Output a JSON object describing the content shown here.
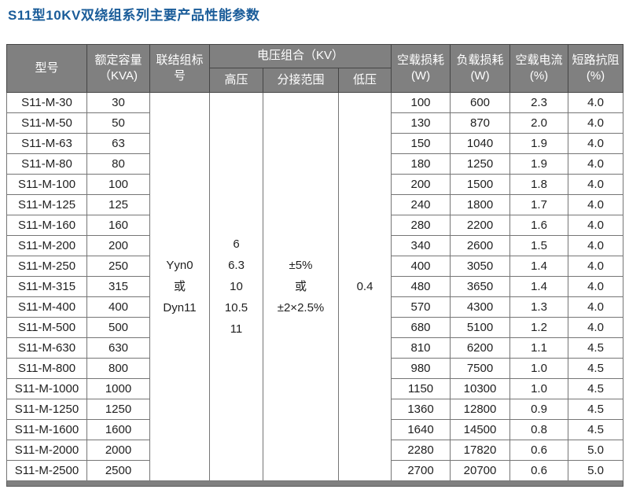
{
  "title": "S11型10KV双绕组系列主要产品性能参数",
  "colors": {
    "title_text": "#1a5c99",
    "header_bg": "#808080",
    "header_text": "#ffffff",
    "body_text": "#1f1f1f",
    "grid_border": "#757575",
    "footer_bar_bg": "#808080"
  },
  "table": {
    "headers": {
      "model": "型号",
      "capacity": [
        "额定容量",
        "（KVA)"
      ],
      "connection": [
        "联结组标",
        "号"
      ],
      "voltage_group": "电压组合（KV）",
      "high_voltage": "高压",
      "tap_range": "分接范围",
      "low_voltage": "低压",
      "no_load_loss": [
        "空载损耗",
        "(W)"
      ],
      "load_loss": [
        "负载损耗",
        "(W)"
      ],
      "no_load_current": [
        "空载电流",
        "(%)"
      ],
      "impedance": [
        "短路抗阻",
        "(%)"
      ]
    },
    "merged": {
      "connection_lines": [
        "Yyn0",
        "或",
        "Dyn11"
      ],
      "high_voltage_lines": [
        "6",
        "6.3",
        "10",
        "10.5",
        "11"
      ],
      "tap_range_lines": [
        "±5%",
        "或",
        "±2×2.5%"
      ],
      "low_voltage_value": "0.4"
    },
    "rows": [
      [
        "S11-M-30",
        "30",
        "100",
        "600",
        "2.3",
        "4.0"
      ],
      [
        "S11-M-50",
        "50",
        "130",
        "870",
        "2.0",
        "4.0"
      ],
      [
        "S11-M-63",
        "63",
        "150",
        "1040",
        "1.9",
        "4.0"
      ],
      [
        "S11-M-80",
        "80",
        "180",
        "1250",
        "1.9",
        "4.0"
      ],
      [
        "S11-M-100",
        "100",
        "200",
        "1500",
        "1.8",
        "4.0"
      ],
      [
        "S11-M-125",
        "125",
        "240",
        "1800",
        "1.7",
        "4.0"
      ],
      [
        "S11-M-160",
        "160",
        "280",
        "2200",
        "1.6",
        "4.0"
      ],
      [
        "S11-M-200",
        "200",
        "340",
        "2600",
        "1.5",
        "4.0"
      ],
      [
        "S11-M-250",
        "250",
        "400",
        "3050",
        "1.4",
        "4.0"
      ],
      [
        "S11-M-315",
        "315",
        "480",
        "3650",
        "1.4",
        "4.0"
      ],
      [
        "S11-M-400",
        "400",
        "570",
        "4300",
        "1.3",
        "4.0"
      ],
      [
        "S11-M-500",
        "500",
        "680",
        "5100",
        "1.2",
        "4.0"
      ],
      [
        "S11-M-630",
        "630",
        "810",
        "6200",
        "1.1",
        "4.5"
      ],
      [
        "S11-M-800",
        "800",
        "980",
        "7500",
        "1.0",
        "4.5"
      ],
      [
        "S11-M-1000",
        "1000",
        "1150",
        "10300",
        "1.0",
        "4.5"
      ],
      [
        "S11-M-1250",
        "1250",
        "1360",
        "12800",
        "0.9",
        "4.5"
      ],
      [
        "S11-M-1600",
        "1600",
        "1640",
        "14500",
        "0.8",
        "4.5"
      ],
      [
        "S11-M-2000",
        "2000",
        "2280",
        "17820",
        "0.6",
        "5.0"
      ],
      [
        "S11-M-2500",
        "2500",
        "2700",
        "20700",
        "0.6",
        "5.0"
      ]
    ]
  }
}
